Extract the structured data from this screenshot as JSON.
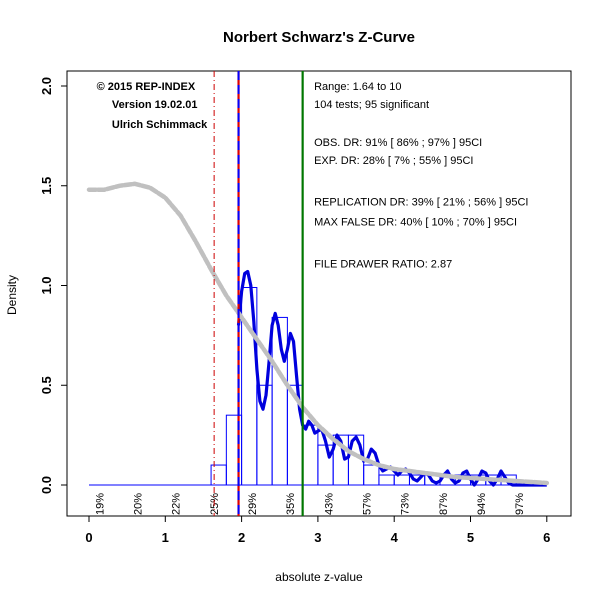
{
  "chart_data": {
    "type": "histogram",
    "title": "Norbert Schwarz's Z-Curve",
    "xlabel": "absolute z-value",
    "ylabel": "Density",
    "xlim": [
      0,
      6
    ],
    "ylim": [
      0,
      2.0
    ],
    "xticks": [
      "0",
      "1",
      "2",
      "3",
      "4",
      "5",
      "6"
    ],
    "yticks": [
      "0.0",
      "0.5",
      "1.0",
      "1.5",
      "2.0"
    ],
    "histogram": {
      "bin_width": 0.2,
      "bins": [
        {
          "x0": 1.6,
          "x1": 1.8,
          "density": 0.1
        },
        {
          "x0": 1.8,
          "x1": 2.0,
          "density": 0.35
        },
        {
          "x0": 2.0,
          "x1": 2.2,
          "density": 0.99
        },
        {
          "x0": 2.2,
          "x1": 2.4,
          "density": 0.5
        },
        {
          "x0": 2.4,
          "x1": 2.6,
          "density": 0.84
        },
        {
          "x0": 2.6,
          "x1": 2.8,
          "density": 0.5
        },
        {
          "x0": 2.8,
          "x1": 3.0,
          "density": 0.3
        },
        {
          "x0": 3.0,
          "x1": 3.2,
          "density": 0.2
        },
        {
          "x0": 3.2,
          "x1": 3.4,
          "density": 0.25
        },
        {
          "x0": 3.4,
          "x1": 3.6,
          "density": 0.25
        },
        {
          "x0": 3.6,
          "x1": 3.8,
          "density": 0.1
        },
        {
          "x0": 3.8,
          "x1": 4.0,
          "density": 0.05
        },
        {
          "x0": 4.0,
          "x1": 4.2,
          "density": 0.05
        },
        {
          "x0": 4.2,
          "x1": 4.4,
          "density": 0.05
        },
        {
          "x0": 4.4,
          "x1": 4.6,
          "density": 0.05
        },
        {
          "x0": 4.6,
          "x1": 4.8,
          "density": 0.05
        },
        {
          "x0": 4.8,
          "x1": 5.0,
          "density": 0.05
        },
        {
          "x0": 5.0,
          "x1": 5.2,
          "density": 0.05
        },
        {
          "x0": 5.2,
          "x1": 5.4,
          "density": 0.05
        },
        {
          "x0": 5.4,
          "x1": 5.6,
          "density": 0.05
        }
      ]
    },
    "density_curve": {
      "color": "#0000dd",
      "x": [
        1.96,
        2.0,
        2.04,
        2.08,
        2.12,
        2.16,
        2.2,
        2.24,
        2.28,
        2.32,
        2.36,
        2.4,
        2.44,
        2.48,
        2.52,
        2.56,
        2.6,
        2.64,
        2.68,
        2.72,
        2.76,
        2.8,
        2.84,
        2.88,
        2.92,
        2.96,
        3.0,
        3.05,
        3.1,
        3.15,
        3.2,
        3.25,
        3.3,
        3.35,
        3.4,
        3.45,
        3.5,
        3.55,
        3.6,
        3.65,
        3.7,
        3.75,
        3.8,
        3.85,
        3.9,
        3.95,
        4.0,
        4.05,
        4.1,
        4.15,
        4.2,
        4.25,
        4.3,
        4.35,
        4.4,
        4.45,
        4.5,
        4.55,
        4.6,
        4.65,
        4.7,
        4.75,
        4.8,
        4.85,
        4.9,
        4.95,
        5.0,
        5.05,
        5.1,
        5.15,
        5.2,
        5.25,
        5.3,
        5.35,
        5.4,
        5.45,
        5.5,
        5.55,
        5.6,
        5.7,
        5.8,
        5.9,
        6.0
      ],
      "y": [
        0.8,
        0.97,
        1.06,
        1.07,
        1.0,
        0.82,
        0.58,
        0.42,
        0.38,
        0.45,
        0.62,
        0.8,
        0.86,
        0.8,
        0.68,
        0.62,
        0.68,
        0.76,
        0.72,
        0.55,
        0.38,
        0.3,
        0.28,
        0.32,
        0.3,
        0.26,
        0.27,
        0.28,
        0.22,
        0.14,
        0.18,
        0.25,
        0.22,
        0.13,
        0.14,
        0.22,
        0.24,
        0.2,
        0.12,
        0.13,
        0.18,
        0.16,
        0.1,
        0.07,
        0.08,
        0.09,
        0.07,
        0.05,
        0.07,
        0.08,
        0.06,
        0.03,
        0.02,
        0.04,
        0.06,
        0.05,
        0.02,
        0.01,
        0.02,
        0.05,
        0.07,
        0.03,
        0.01,
        0.02,
        0.06,
        0.07,
        0.03,
        0.0,
        0.03,
        0.07,
        0.06,
        0.02,
        0.0,
        0.03,
        0.07,
        0.04,
        0.01,
        0.0,
        0.0,
        0.0,
        0.0,
        0.0,
        0.0
      ]
    },
    "zcurve_fit": {
      "color": "#c0c0c0",
      "x": [
        0.0,
        0.2,
        0.4,
        0.6,
        0.8,
        1.0,
        1.2,
        1.4,
        1.6,
        1.8,
        2.0,
        2.2,
        2.4,
        2.6,
        2.8,
        3.0,
        3.2,
        3.4,
        3.6,
        3.8,
        4.0,
        4.2,
        4.4,
        4.6,
        4.8,
        5.0,
        5.2,
        5.4,
        5.6,
        5.8,
        6.0
      ],
      "y": [
        1.48,
        1.48,
        1.5,
        1.51,
        1.49,
        1.44,
        1.35,
        1.22,
        1.08,
        0.95,
        0.84,
        0.73,
        0.62,
        0.5,
        0.39,
        0.3,
        0.23,
        0.17,
        0.13,
        0.1,
        0.08,
        0.07,
        0.06,
        0.05,
        0.04,
        0.035,
        0.03,
        0.025,
        0.02,
        0.015,
        0.01
      ]
    },
    "vlines": [
      {
        "x": 1.64,
        "color": "#cc0000",
        "style": "dashdot"
      },
      {
        "x": 1.96,
        "color": "#dd0000",
        "style": "solid"
      },
      {
        "x": 1.96,
        "color": "#0000ff",
        "style": "dashed"
      },
      {
        "x": 2.8,
        "color": "#007700",
        "style": "solid"
      }
    ],
    "baseline": {
      "x0": 0.0,
      "x1": 2.0,
      "color": "#0000ff"
    },
    "power_labels": [
      {
        "x": 0.15,
        "text": "19%"
      },
      {
        "x": 0.65,
        "text": "20%"
      },
      {
        "x": 1.15,
        "text": "22%"
      },
      {
        "x": 1.65,
        "text": "25%"
      },
      {
        "x": 2.15,
        "text": "29%"
      },
      {
        "x": 2.65,
        "text": "35%"
      },
      {
        "x": 3.15,
        "text": "43%"
      },
      {
        "x": 3.65,
        "text": "57%"
      },
      {
        "x": 4.15,
        "text": "73%"
      },
      {
        "x": 4.65,
        "text": "87%"
      },
      {
        "x": 5.15,
        "text": "94%"
      },
      {
        "x": 5.65,
        "text": "97%"
      }
    ],
    "annotations_left": [
      {
        "x": 0.1,
        "y": 1.98,
        "text": "© 2015 REP-INDEX"
      },
      {
        "x": 0.3,
        "y": 1.89,
        "text": "Version 19.02.01"
      },
      {
        "x": 0.3,
        "y": 1.79,
        "text": "Ulrich Schimmack"
      }
    ],
    "annotations_right": [
      {
        "y": 1.98,
        "text": "Range: 1.64 to 10"
      },
      {
        "y": 1.89,
        "text": "104 tests; 95 significant"
      },
      {
        "y": 1.7,
        "text": "OBS. DR: 91% [ 86% ; 97% ] 95CI"
      },
      {
        "y": 1.61,
        "text": "EXP. DR: 28% [ 7% ; 55% ] 95CI"
      },
      {
        "y": 1.4,
        "text": "REPLICATION DR: 39% [ 21% ; 56% ] 95CI"
      },
      {
        "y": 1.3,
        "text": "MAX FALSE DR: 40% [ 10% ; 70% ] 95CI"
      },
      {
        "y": 1.09,
        "text": "FILE DRAWER RATIO: 2.87"
      }
    ]
  }
}
